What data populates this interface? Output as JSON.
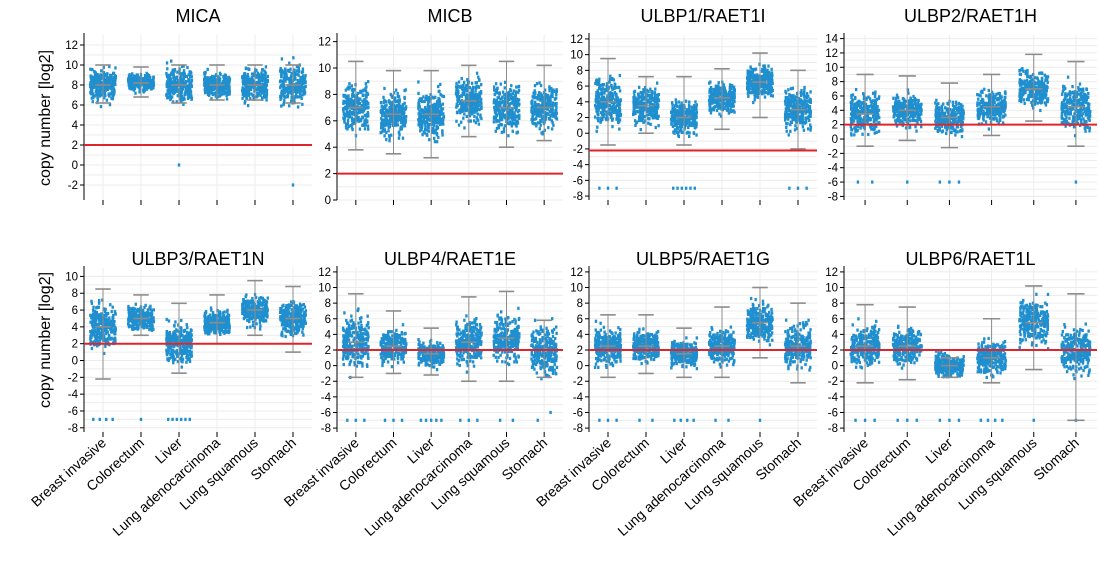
{
  "figure": {
    "ylabel": "copy number [log2]",
    "categories": [
      "Breast invasive",
      "Colorectum",
      "Liver",
      "Lung adenocarcinoma",
      "Lung squamous",
      "Stomach"
    ],
    "point_color": "#1f8fcf",
    "threshold_color": "#e0242b",
    "whisker_color": "#8c8c8c"
  },
  "chart_data": [
    {
      "type": "scatter",
      "title": "MICA",
      "ylabel": "copy number [log2]",
      "ylim": [
        -3.5,
        13
      ],
      "yticks": [
        -2,
        0,
        2,
        4,
        6,
        8,
        10,
        12
      ],
      "threshold": 2,
      "grid": true,
      "categories": [
        "Breast invasive",
        "Colorectum",
        "Liver",
        "Lung adenocarcinoma",
        "Lung squamous",
        "Stomach"
      ],
      "series": [
        {
          "category": "Breast invasive",
          "low": 3.8,
          "high": 10.5,
          "median": 8,
          "whisker_low": 6.2,
          "whisker_high": 10,
          "outliers": []
        },
        {
          "category": "Colorectum",
          "low": 6.5,
          "high": 10,
          "median": 8.2,
          "whisker_low": 6.8,
          "whisker_high": 9.8,
          "outliers": []
        },
        {
          "category": "Liver",
          "low": 3.2,
          "high": 10.5,
          "median": 8,
          "whisker_low": 6.2,
          "whisker_high": 10,
          "outliers": [
            0
          ]
        },
        {
          "category": "Lung adenocarcinoma",
          "low": 5.2,
          "high": 10.2,
          "median": 8,
          "whisker_low": 6.5,
          "whisker_high": 10,
          "outliers": []
        },
        {
          "category": "Lung squamous",
          "low": 3.8,
          "high": 10.5,
          "median": 8,
          "whisker_low": 6.5,
          "whisker_high": 10,
          "outliers": []
        },
        {
          "category": "Stomach",
          "low": 3.8,
          "high": 11.8,
          "median": 8,
          "whisker_low": 6.2,
          "whisker_high": 10,
          "outliers": [
            -2
          ]
        }
      ]
    },
    {
      "type": "scatter",
      "title": "MICB",
      "ylabel": "",
      "ylim": [
        0,
        12.5
      ],
      "yticks": [
        0,
        2,
        4,
        6,
        8,
        10,
        12
      ],
      "threshold": 2,
      "grid": true,
      "categories": [
        "Breast invasive",
        "Colorectum",
        "Liver",
        "Lung adenocarcinoma",
        "Lung squamous",
        "Stomach"
      ],
      "series": [
        {
          "category": "Breast invasive",
          "low": 3.2,
          "high": 10.8,
          "median": 7,
          "whisker_low": 3.8,
          "whisker_high": 10.5,
          "outliers": []
        },
        {
          "category": "Colorectum",
          "low": 2.8,
          "high": 10.0,
          "median": 6.5,
          "whisker_low": 3.5,
          "whisker_high": 9.8,
          "outliers": []
        },
        {
          "category": "Liver",
          "low": 2.3,
          "high": 10.0,
          "median": 6.5,
          "whisker_low": 3.2,
          "whisker_high": 9.8,
          "outliers": []
        },
        {
          "category": "Lung adenocarcinoma",
          "low": 3.8,
          "high": 10.8,
          "median": 7.5,
          "whisker_low": 4.8,
          "whisker_high": 10.2,
          "outliers": []
        },
        {
          "category": "Lung squamous",
          "low": 3.2,
          "high": 10.8,
          "median": 7,
          "whisker_low": 4,
          "whisker_high": 10.5,
          "outliers": []
        },
        {
          "category": "Stomach",
          "low": 4.0,
          "high": 11.2,
          "median": 7,
          "whisker_low": 4.5,
          "whisker_high": 10.2,
          "outliers": []
        }
      ]
    },
    {
      "type": "scatter",
      "title": "ULBP1/RAET1I",
      "ylabel": "",
      "ylim": [
        -8.5,
        12.5
      ],
      "yticks": [
        -8,
        -6,
        -4,
        -2,
        0,
        2,
        4,
        6,
        8,
        10,
        12
      ],
      "threshold": -2.2,
      "grid": true,
      "categories": [
        "Breast invasive",
        "Colorectum",
        "Liver",
        "Lung adenocarcinoma",
        "Lung squamous",
        "Stomach"
      ],
      "series": [
        {
          "category": "Breast invasive",
          "low": -2.5,
          "high": 10.5,
          "median": 4,
          "whisker_low": -1.5,
          "whisker_high": 9.5,
          "outliers": [
            -7,
            -7,
            -7
          ]
        },
        {
          "category": "Colorectum",
          "low": -2.0,
          "high": 7.5,
          "median": 3.5,
          "whisker_low": 0,
          "whisker_high": 7.2,
          "outliers": []
        },
        {
          "category": "Liver",
          "low": -2.0,
          "high": 8.0,
          "median": 2,
          "whisker_low": -1.5,
          "whisker_high": 7.2,
          "outliers": [
            -7,
            -7,
            -7,
            -7,
            -7,
            -7
          ]
        },
        {
          "category": "Lung adenocarcinoma",
          "low": 0,
          "high": 8.5,
          "median": 4.5,
          "whisker_low": 0.5,
          "whisker_high": 8.2,
          "outliers": []
        },
        {
          "category": "Lung squamous",
          "low": 1.8,
          "high": 10.5,
          "median": 6.5,
          "whisker_low": 2,
          "whisker_high": 10.2,
          "outliers": []
        },
        {
          "category": "Stomach",
          "low": -2.5,
          "high": 8.5,
          "median": 3,
          "whisker_low": -2,
          "whisker_high": 8,
          "outliers": [
            -7,
            -7,
            -7
          ]
        }
      ]
    },
    {
      "type": "scatter",
      "title": "ULBP2/RAET1H",
      "ylabel": "",
      "ylim": [
        -8.5,
        14.5
      ],
      "yticks": [
        -8,
        -6,
        -4,
        -2,
        0,
        2,
        4,
        6,
        8,
        10,
        12,
        14
      ],
      "threshold": 2,
      "grid": true,
      "categories": [
        "Breast invasive",
        "Colorectum",
        "Liver",
        "Lung adenocarcinoma",
        "Lung squamous",
        "Stomach"
      ],
      "series": [
        {
          "category": "Breast invasive",
          "low": -2.0,
          "high": 9.5,
          "median": 3.5,
          "whisker_low": -1,
          "whisker_high": 9,
          "outliers": [
            -6,
            -6
          ]
        },
        {
          "category": "Colorectum",
          "low": -0.5,
          "high": 9.0,
          "median": 4,
          "whisker_low": -0.2,
          "whisker_high": 8.8,
          "outliers": [
            -6
          ]
        },
        {
          "category": "Liver",
          "low": -2.0,
          "high": 8.0,
          "median": 3,
          "whisker_low": -1.2,
          "whisker_high": 7.8,
          "outliers": [
            -6,
            -6,
            -6
          ]
        },
        {
          "category": "Lung adenocarcinoma",
          "low": 0,
          "high": 9.2,
          "median": 4.5,
          "whisker_low": 0.5,
          "whisker_high": 9,
          "outliers": []
        },
        {
          "category": "Lung squamous",
          "low": 2.0,
          "high": 12.0,
          "median": 7,
          "whisker_low": 2.5,
          "whisker_high": 11.8,
          "outliers": []
        },
        {
          "category": "Stomach",
          "low": -2.5,
          "high": 11.0,
          "median": 4.5,
          "whisker_low": -1,
          "whisker_high": 10.8,
          "outliers": [
            -6
          ]
        }
      ]
    },
    {
      "type": "scatter",
      "title": "ULBP3/RAET1N",
      "ylabel": "copy number [log2]",
      "ylim": [
        -8.5,
        11
      ],
      "yticks": [
        -8,
        -6,
        -4,
        -2,
        0,
        2,
        4,
        6,
        8,
        10
      ],
      "threshold": 2,
      "grid": true,
      "categories": [
        "Breast invasive",
        "Colorectum",
        "Liver",
        "Lung adenocarcinoma",
        "Lung squamous",
        "Stomach"
      ],
      "series": [
        {
          "category": "Breast invasive",
          "low": -2.5,
          "high": 9.0,
          "median": 4,
          "whisker_low": -2.2,
          "whisker_high": 8.5,
          "outliers": [
            -7,
            -7,
            -7,
            -7
          ]
        },
        {
          "category": "Colorectum",
          "low": 2.5,
          "high": 8.0,
          "median": 5,
          "whisker_low": 3,
          "whisker_high": 7.8,
          "outliers": [
            -7
          ]
        },
        {
          "category": "Liver",
          "low": -2.0,
          "high": 7.0,
          "median": 2,
          "whisker_low": -1.5,
          "whisker_high": 6.8,
          "outliers": [
            -7,
            -7,
            -7,
            -7,
            -7,
            -7
          ]
        },
        {
          "category": "Lung adenocarcinoma",
          "low": 1.8,
          "high": 8.0,
          "median": 4.5,
          "whisker_low": 2,
          "whisker_high": 7.8,
          "outliers": []
        },
        {
          "category": "Lung squamous",
          "low": 2.5,
          "high": 9.8,
          "median": 6,
          "whisker_low": 3,
          "whisker_high": 9.5,
          "outliers": []
        },
        {
          "category": "Stomach",
          "low": 0.5,
          "high": 9.0,
          "median": 5,
          "whisker_low": 1,
          "whisker_high": 8.8,
          "outliers": []
        }
      ]
    },
    {
      "type": "scatter",
      "title": "ULBP4/RAET1E",
      "ylabel": "",
      "ylim": [
        -8.5,
        12.5
      ],
      "yticks": [
        -8,
        -6,
        -4,
        -2,
        0,
        2,
        4,
        6,
        8,
        10,
        12
      ],
      "threshold": 2,
      "grid": true,
      "categories": [
        "Breast invasive",
        "Colorectum",
        "Liver",
        "Lung adenocarcinoma",
        "Lung squamous",
        "Stomach"
      ],
      "series": [
        {
          "category": "Breast invasive",
          "low": -2.0,
          "high": 10.8,
          "median": 3,
          "whisker_low": -1.5,
          "whisker_high": 9.2,
          "outliers": [
            -7,
            -7,
            -7
          ]
        },
        {
          "category": "Colorectum",
          "low": -1.5,
          "high": 7.5,
          "median": 2.5,
          "whisker_low": -1,
          "whisker_high": 7,
          "outliers": [
            -7,
            -7,
            -7
          ]
        },
        {
          "category": "Liver",
          "low": -1.5,
          "high": 5.0,
          "median": 1.5,
          "whisker_low": -1.2,
          "whisker_high": 4.8,
          "outliers": [
            -7,
            -7,
            -7,
            -7,
            -7
          ]
        },
        {
          "category": "Lung adenocarcinoma",
          "low": -2.2,
          "high": 9.2,
          "median": 3,
          "whisker_low": -2,
          "whisker_high": 8.8,
          "outliers": [
            -7,
            -7,
            -7
          ]
        },
        {
          "category": "Lung squamous",
          "low": -2.0,
          "high": 10.0,
          "median": 3.5,
          "whisker_low": -2,
          "whisker_high": 9.5,
          "outliers": [
            -7,
            -7
          ]
        },
        {
          "category": "Stomach",
          "low": -3.0,
          "high": 10.5,
          "median": 2,
          "whisker_low": -1.5,
          "whisker_high": 5.8,
          "outliers": [
            -7,
            -6
          ]
        }
      ]
    },
    {
      "type": "scatter",
      "title": "ULBP5/RAET1G",
      "ylabel": "",
      "ylim": [
        -8.5,
        12.5
      ],
      "yticks": [
        -8,
        -6,
        -4,
        -2,
        0,
        2,
        4,
        6,
        8,
        10,
        12
      ],
      "threshold": 2,
      "grid": true,
      "categories": [
        "Breast invasive",
        "Colorectum",
        "Liver",
        "Lung adenocarcinoma",
        "Lung squamous",
        "Stomach"
      ],
      "series": [
        {
          "category": "Breast invasive",
          "low": -1.8,
          "high": 8.5,
          "median": 2.5,
          "whisker_low": -1.5,
          "whisker_high": 6.5,
          "outliers": [
            -7,
            -7,
            -7
          ]
        },
        {
          "category": "Colorectum",
          "low": -1.2,
          "high": 6.8,
          "median": 2.5,
          "whisker_low": -1,
          "whisker_high": 6.5,
          "outliers": [
            -7,
            -7
          ]
        },
        {
          "category": "Liver",
          "low": -1.5,
          "high": 5.0,
          "median": 1.5,
          "whisker_low": -1.5,
          "whisker_high": 4.8,
          "outliers": [
            -7,
            -7,
            -7,
            -7
          ]
        },
        {
          "category": "Lung adenocarcinoma",
          "low": -1.5,
          "high": 8.0,
          "median": 2.5,
          "whisker_low": -1.5,
          "whisker_high": 7.5,
          "outliers": [
            -7,
            -7
          ]
        },
        {
          "category": "Lung squamous",
          "low": 0.8,
          "high": 10.5,
          "median": 5.5,
          "whisker_low": 1,
          "whisker_high": 10,
          "outliers": [
            -7
          ]
        },
        {
          "category": "Stomach",
          "low": -3.5,
          "high": 8.5,
          "median": 2.5,
          "whisker_low": -2.2,
          "whisker_high": 8,
          "outliers": []
        }
      ]
    },
    {
      "type": "scatter",
      "title": "ULBP6/RAET1L",
      "ylabel": "",
      "ylim": [
        -8.5,
        12.5
      ],
      "yticks": [
        -8,
        -6,
        -4,
        -2,
        0,
        2,
        4,
        6,
        8,
        10,
        12
      ],
      "threshold": 2,
      "grid": true,
      "categories": [
        "Breast invasive",
        "Colorectum",
        "Liver",
        "Lung adenocarcinoma",
        "Lung squamous",
        "Stomach"
      ],
      "series": [
        {
          "category": "Breast invasive",
          "low": -2.5,
          "high": 8.0,
          "median": 2.5,
          "whisker_low": -2.2,
          "whisker_high": 7.8,
          "outliers": [
            -7,
            -7,
            -7
          ]
        },
        {
          "category": "Colorectum",
          "low": -2.0,
          "high": 7.5,
          "median": 2.5,
          "whisker_low": -1.8,
          "whisker_high": 7.5,
          "outliers": [
            -7,
            -7,
            -7
          ]
        },
        {
          "category": "Liver",
          "low": -1.5,
          "high": 4.5,
          "median": 0,
          "whisker_low": -1.5,
          "whisker_high": 1,
          "outliers": [
            -7,
            -7,
            -7
          ]
        },
        {
          "category": "Lung adenocarcinoma",
          "low": -2.5,
          "high": 6.5,
          "median": 1,
          "whisker_low": -2.2,
          "whisker_high": 6,
          "outliers": [
            -7,
            -7,
            -7,
            -7
          ]
        },
        {
          "category": "Lung squamous",
          "low": -1.0,
          "high": 10.5,
          "median": 5.5,
          "whisker_low": -0.5,
          "whisker_high": 10.2,
          "outliers": [
            -7
          ]
        },
        {
          "category": "Stomach",
          "low": -3.5,
          "high": 9.5,
          "median": 2,
          "whisker_low": -7,
          "whisker_high": 9.2,
          "outliers": [
            -7
          ]
        }
      ]
    }
  ]
}
